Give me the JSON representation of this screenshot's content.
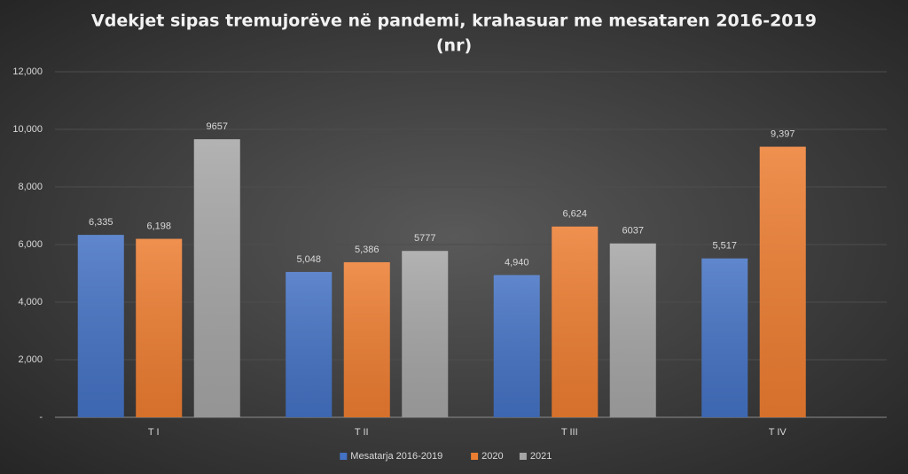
{
  "chart_data": {
    "type": "bar",
    "title": [
      "Vdekjet sipas tremujorëve në pandemi, krahasuar me mesataren 2016-2019",
      "(nr)"
    ],
    "categories": [
      "T I",
      "T II",
      "T III",
      "T IV"
    ],
    "series": [
      {
        "name": "Mesatarja 2016-2019",
        "color": "#4472c4",
        "values": [
          6335,
          5048,
          4940,
          5517
        ],
        "value_labels": [
          "6,335",
          "5,048",
          "4,940",
          "5,517"
        ]
      },
      {
        "name": "2020",
        "color": "#ed7d31",
        "values": [
          6198,
          5386,
          6624,
          9397
        ],
        "value_labels": [
          "6,198",
          "5,386",
          "6,624",
          "9,397"
        ]
      },
      {
        "name": "2021",
        "color": "#a5a5a5",
        "values": [
          9657,
          5777,
          6037,
          null
        ],
        "value_labels": [
          "9657",
          "5777",
          "6037",
          null
        ]
      }
    ],
    "ylim": [
      0,
      12000
    ],
    "yticks": [
      {
        "value": 0,
        "label": "-"
      },
      {
        "value": 2000,
        "label": "2,000"
      },
      {
        "value": 4000,
        "label": "4,000"
      },
      {
        "value": 6000,
        "label": "6,000"
      },
      {
        "value": 8000,
        "label": "8,000"
      },
      {
        "value": 10000,
        "label": "10,000"
      },
      {
        "value": 12000,
        "label": "12,000"
      }
    ],
    "grid": true,
    "legend": "bottom"
  }
}
